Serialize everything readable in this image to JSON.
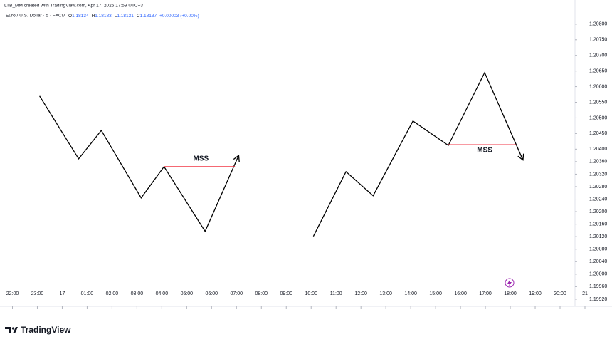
{
  "header": {
    "credit": "LTB_MM created with TradingView.com, Apr 17, 2026 17:59 UTC+3",
    "symbol": "Euro / U.S. Dollar · 5 · FXCM",
    "ohlc": [
      {
        "key": "O",
        "value": "1.18134"
      },
      {
        "key": "H",
        "value": "1.18183"
      },
      {
        "key": "L",
        "value": "1.18131"
      },
      {
        "key": "C",
        "value": "1.18137"
      }
    ],
    "change": "+0.00003 (+0.00%)"
  },
  "footer": {
    "brand": "TradingView"
  },
  "chart_data": {
    "type": "line",
    "xlim": [
      -0.5,
      22.6
    ],
    "ylim": [
      1.19897,
      1.20827
    ],
    "xticks": [
      {
        "value": 0,
        "label": "22:00"
      },
      {
        "value": 1,
        "label": "23:00"
      },
      {
        "value": 2,
        "label": "17"
      },
      {
        "value": 3,
        "label": "01:00"
      },
      {
        "value": 4,
        "label": "02:00"
      },
      {
        "value": 5,
        "label": "03:00"
      },
      {
        "value": 6,
        "label": "04:00"
      },
      {
        "value": 7,
        "label": "05:00"
      },
      {
        "value": 8,
        "label": "06:00"
      },
      {
        "value": 9,
        "label": "07:00"
      },
      {
        "value": 10,
        "label": "08:00"
      },
      {
        "value": 11,
        "label": "09:00"
      },
      {
        "value": 12,
        "label": "10:00"
      },
      {
        "value": 13,
        "label": "11:00"
      },
      {
        "value": 14,
        "label": "12:00"
      },
      {
        "value": 15,
        "label": "13:00"
      },
      {
        "value": 16,
        "label": "14:00"
      },
      {
        "value": 17,
        "label": "15:00"
      },
      {
        "value": 18,
        "label": "16:00"
      },
      {
        "value": 19,
        "label": "17:00"
      },
      {
        "value": 20,
        "label": "18:00"
      },
      {
        "value": 21,
        "label": "19:00"
      },
      {
        "value": 22,
        "label": "20:00"
      },
      {
        "value": 23,
        "label": "21"
      }
    ],
    "yticks": [
      {
        "value": 1.208,
        "label": "1.20800"
      },
      {
        "value": 1.2075,
        "label": "1.20750"
      },
      {
        "value": 1.207,
        "label": "1.20700"
      },
      {
        "value": 1.2065,
        "label": "1.20650"
      },
      {
        "value": 1.206,
        "label": "1.20600"
      },
      {
        "value": 1.2055,
        "label": "1.20550"
      },
      {
        "value": 1.205,
        "label": "1.20500"
      },
      {
        "value": 1.2045,
        "label": "1.20450"
      },
      {
        "value": 1.204,
        "label": "1.20400"
      },
      {
        "value": 1.2036,
        "label": "1.20360"
      },
      {
        "value": 1.2032,
        "label": "1.20320"
      },
      {
        "value": 1.2028,
        "label": "1.20280"
      },
      {
        "value": 1.2024,
        "label": "1.20240"
      },
      {
        "value": 1.202,
        "label": "1.20200"
      },
      {
        "value": 1.2016,
        "label": "1.20160"
      },
      {
        "value": 1.2012,
        "label": "1.20120"
      },
      {
        "value": 1.2008,
        "label": "1.20080"
      },
      {
        "value": 1.2004,
        "label": "1.20040"
      },
      {
        "value": 1.2,
        "label": "1.20000"
      },
      {
        "value": 1.1996,
        "label": "1.19960"
      },
      {
        "value": 1.1992,
        "label": "1.19920"
      }
    ],
    "series": [
      {
        "color": "#000000",
        "x": [
          1.09,
          2.66,
          3.57,
          5.17,
          6.09,
          7.74,
          9.09
        ],
        "values": [
          1.2057,
          1.20369,
          1.2046,
          1.20244,
          1.20344,
          1.20137,
          1.2038
        ]
      },
      {
        "color": "#000000",
        "x": [
          12.09,
          13.4,
          14.49,
          16.09,
          17.51,
          18.97,
          20.51
        ],
        "values": [
          1.20121,
          1.20328,
          1.20251,
          1.2049,
          1.20412,
          1.20645,
          1.20365
        ]
      }
    ],
    "annotations": [
      {
        "text": "MSS",
        "x": 7.57,
        "y": 1.20369,
        "x1": 6.09,
        "x2": 8.94,
        "level": 1.20344,
        "color": "#f23645"
      },
      {
        "text": "MSS",
        "x": 18.97,
        "y": 1.20396,
        "x1": 17.51,
        "x2": 20.23,
        "level": 1.20414,
        "color": "#f23645"
      }
    ]
  }
}
